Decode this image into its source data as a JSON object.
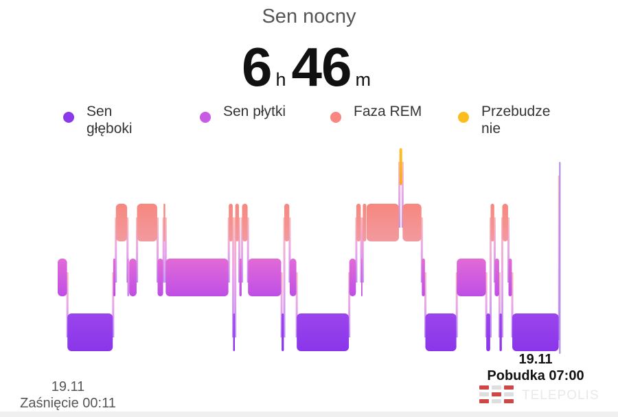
{
  "header": {
    "title": "Sen nocny"
  },
  "duration": {
    "hours": "6",
    "hours_unit": "h",
    "minutes": "46",
    "minutes_unit": "m"
  },
  "legend": [
    {
      "label": "Sen głęboki",
      "color": "#8a3aea"
    },
    {
      "label": "Sen płytki",
      "color": "#c95ae3"
    },
    {
      "label": "Faza REM",
      "color": "#f7877f"
    },
    {
      "label": "Przebudzenie",
      "color": "#fbbd1b"
    }
  ],
  "chart_data": {
    "type": "hypnogram",
    "levels": [
      "Przebudzenie",
      "Faza REM",
      "Sen płytki",
      "Sen głęboki"
    ],
    "segments": [
      {
        "stage": "Sen płytki",
        "duration": 3.6
      },
      {
        "stage": "Sen głęboki",
        "duration": 16.9
      },
      {
        "stage": "Sen płytki",
        "duration": 1.0
      },
      {
        "stage": "Faza REM",
        "duration": 4.3
      },
      {
        "stage": "Sen płytki",
        "duration": 0.6
      },
      {
        "stage": "Sen płytki",
        "duration": 2.9
      },
      {
        "stage": "Faza REM",
        "duration": 7.6
      },
      {
        "stage": "Sen płytki",
        "duration": 2.2
      },
      {
        "stage": "Faza REM",
        "duration": 0.8
      },
      {
        "stage": "Sen płytki",
        "duration": 23.3
      },
      {
        "stage": "Faza REM",
        "duration": 1.6
      },
      {
        "stage": "Sen głęboki",
        "duration": 0.8
      },
      {
        "stage": "Faza REM",
        "duration": 1.5
      },
      {
        "stage": "Sen płytki",
        "duration": 1.0
      },
      {
        "stage": "Faza REM",
        "duration": 2.2
      },
      {
        "stage": "Sen płytki",
        "duration": 12.4
      },
      {
        "stage": "Sen głęboki",
        "duration": 1.0
      },
      {
        "stage": "Faza REM",
        "duration": 2.0
      },
      {
        "stage": "Sen płytki",
        "duration": 2.6
      },
      {
        "stage": "Sen głęboki",
        "duration": 19.4
      },
      {
        "stage": "Sen płytki",
        "duration": 2.6
      },
      {
        "stage": "Faza REM",
        "duration": 1.8
      },
      {
        "stage": "Sen płytki",
        "duration": 0.6
      },
      {
        "stage": "Faza REM",
        "duration": 1.4
      },
      {
        "stage": "Faza REM",
        "duration": 12.1
      },
      {
        "stage": "Przebudzenie",
        "duration": 1.2
      },
      {
        "stage": "Faza REM",
        "duration": 7.1
      },
      {
        "stage": "Sen płytki",
        "duration": 1.3
      },
      {
        "stage": "Sen głęboki",
        "duration": 11.6
      },
      {
        "stage": "Sen płytki",
        "duration": 10.9
      },
      {
        "stage": "Sen głęboki",
        "duration": 1.6
      },
      {
        "stage": "Faza REM",
        "duration": 1.5
      },
      {
        "stage": "Sen płytki",
        "duration": 1.8
      },
      {
        "stage": "Sen głęboki",
        "duration": 1.0
      },
      {
        "stage": "Faza REM",
        "duration": 2.3
      },
      {
        "stage": "Sen płytki",
        "duration": 1.4
      },
      {
        "stage": "Sen głęboki",
        "duration": 17.3
      },
      {
        "stage": "Przebudzenie",
        "duration": 0.7
      }
    ]
  },
  "sleep_onset": {
    "date": "19.11",
    "label": "Zaśnięcie 00:11"
  },
  "wake_up": {
    "date": "19.11",
    "label": "Pobudka 07:00"
  },
  "watermark": {
    "text": "TELEPOLIS"
  }
}
